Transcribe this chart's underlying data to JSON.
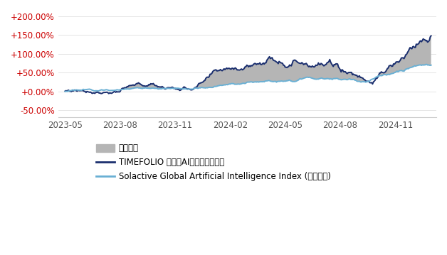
{
  "background_color": "#ffffff",
  "ytick_values": [
    -50,
    0,
    50,
    100,
    150,
    200
  ],
  "ylim": [
    -68,
    215
  ],
  "xtick_labels": [
    "2023-05",
    "2023-08",
    "2023-11",
    "2024-02",
    "2024-05",
    "2024-08",
    "2024-11"
  ],
  "legend_labels": [
    "초과성과",
    "TIMEFOLIO 글로벋AI인공지능액티브",
    "Solactive Global Artificial Intelligence Index (원화환산)"
  ],
  "timefolio_color": "#1a2e6e",
  "index_color": "#6ab0d4",
  "excess_color": "#b5b5b5",
  "ytick_color": "#cc0000",
  "xtick_color": "#555555",
  "n_points": 420,
  "seed": 77,
  "tf_segments": [
    {
      "mean": 0.0022,
      "std": 0.011,
      "n": 80
    },
    {
      "mean": -0.0008,
      "std": 0.011,
      "n": 60
    },
    {
      "mean": 0.0045,
      "std": 0.012,
      "n": 90
    },
    {
      "mean": 0.003,
      "std": 0.014,
      "n": 60
    },
    {
      "mean": -0.003,
      "std": 0.014,
      "n": 60
    },
    {
      "mean": 0.007,
      "std": 0.014,
      "n": 70
    }
  ],
  "idx_segments": [
    {
      "mean": 0.0008,
      "std": 0.007,
      "n": 80
    },
    {
      "mean": 0.0003,
      "std": 0.007,
      "n": 60
    },
    {
      "mean": 0.0018,
      "std": 0.007,
      "n": 90
    },
    {
      "mean": 0.0018,
      "std": 0.009,
      "n": 60
    },
    {
      "mean": -0.001,
      "std": 0.009,
      "n": 60
    },
    {
      "mean": 0.003,
      "std": 0.009,
      "n": 70
    }
  ],
  "tf_endpoint": 148,
  "idx_endpoint": 70,
  "xtick_positions": [
    0,
    63,
    126,
    189,
    252,
    315,
    378
  ]
}
